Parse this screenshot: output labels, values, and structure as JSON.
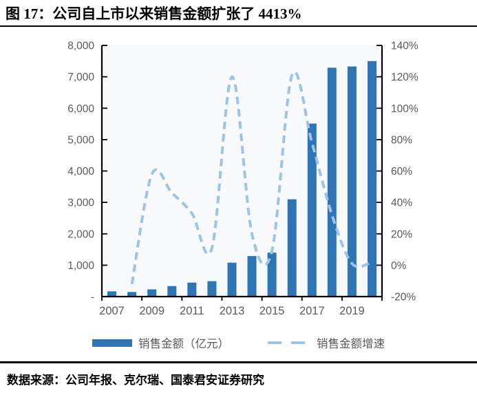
{
  "title": "图 17：公司自上市以来销售金额扩张了 4413%",
  "source": "数据来源：公司年报、克尔瑞、国泰君安证券研究",
  "legend": {
    "bars_label": "销售金额（亿元）",
    "line_label": "销售金额增速"
  },
  "colors": {
    "bar": "#2E75B6",
    "line": "#9DC3E6",
    "axis": "#000000",
    "tick_label": "#595959",
    "plot_bg": "#F8F9FA",
    "rule": "#000000"
  },
  "chart_data": {
    "type": "bar",
    "subtype": "combo_bar_dashed_line",
    "title": "公司自上市以来销售金额扩张了 4413%",
    "categories": [
      "2007",
      "2008",
      "2009",
      "2010",
      "2011",
      "2012",
      "2013",
      "2014",
      "2015",
      "2016",
      "2017",
      "2018",
      "2019",
      "2020"
    ],
    "series": [
      {
        "name": "销售金额（亿元）",
        "type": "bar",
        "axis": "left",
        "values": [
          166,
          146,
          230,
          335,
          445,
          490,
          1080,
          1290,
          1400,
          3100,
          5510,
          7290,
          7330,
          7500
        ]
      },
      {
        "name": "销售金额增速",
        "type": "line",
        "style": "dashed",
        "axis": "right",
        "unit": "%",
        "values": [
          null,
          -12,
          58,
          46,
          33,
          11,
          120,
          20,
          9,
          121,
          78,
          32,
          1,
          2
        ]
      }
    ],
    "left_axis": {
      "min": 0,
      "max": 8000,
      "step": 1000,
      "tick_labels": [
        "-",
        "1,000",
        "2,000",
        "3,000",
        "4,000",
        "5,000",
        "6,000",
        "7,000",
        "8,000"
      ]
    },
    "right_axis": {
      "min": -20,
      "max": 140,
      "step": 20,
      "tick_labels": [
        "-20%",
        "0%",
        "20%",
        "40%",
        "60%",
        "80%",
        "100%",
        "120%",
        "140%"
      ]
    },
    "x_axis": {
      "tick_labels": [
        "2007",
        "2009",
        "2011",
        "2013",
        "2015",
        "2017",
        "2019"
      ],
      "label_every": 2
    },
    "grid": false,
    "legend_position": "bottom"
  }
}
